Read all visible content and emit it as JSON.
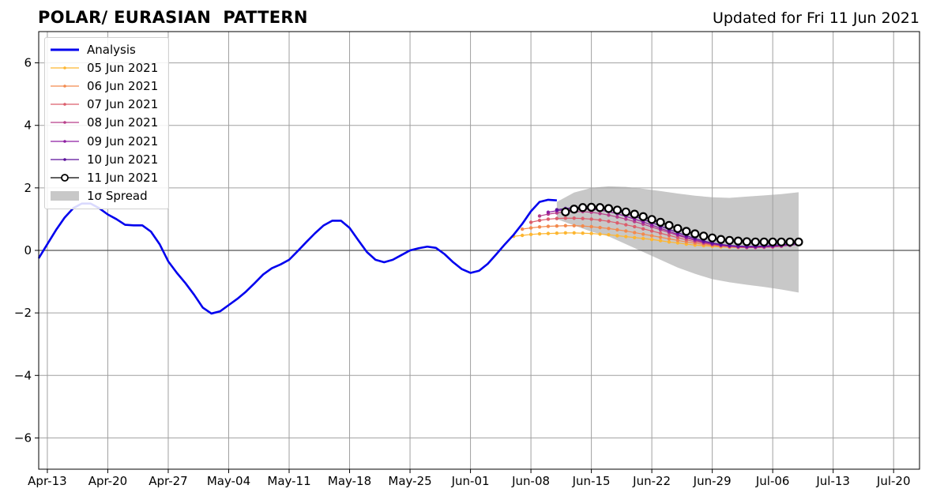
{
  "title": "POLAR/ EURASIAN  PATTERN",
  "updated_label": "Updated for Fri 11 Jun 2021",
  "chart_data": {
    "type": "line",
    "title": "POLAR/ EURASIAN  PATTERN",
    "xlabel": "",
    "ylabel": "",
    "x_ticks": [
      "Apr-13",
      "Apr-20",
      "Apr-27",
      "May-04",
      "May-11",
      "May-18",
      "May-25",
      "Jun-01",
      "Jun-08",
      "Jun-15",
      "Jun-22",
      "Jun-29",
      "Jul-06",
      "Jul-13",
      "Jul-20"
    ],
    "y_ticks": [
      "6",
      "4",
      "2",
      "0",
      "−2",
      "−4",
      "−6"
    ],
    "y_tick_values": [
      6,
      4,
      2,
      0,
      -2,
      -4,
      -6
    ],
    "ylim": [
      -7,
      7
    ],
    "xlim": [
      "2021-04-12",
      "2021-07-23"
    ],
    "grid": true,
    "legend_position": "top-left",
    "series": [
      {
        "name": "Analysis",
        "color": "#0000ee",
        "x": [
          "2021-04-12",
          "2021-04-13",
          "2021-04-14",
          "2021-04-15",
          "2021-04-16",
          "2021-04-17",
          "2021-04-18",
          "2021-04-19",
          "2021-04-20",
          "2021-04-21",
          "2021-04-22",
          "2021-04-23",
          "2021-04-24",
          "2021-04-25",
          "2021-04-26",
          "2021-04-27",
          "2021-04-28",
          "2021-04-29",
          "2021-04-30",
          "2021-05-01",
          "2021-05-02",
          "2021-05-03",
          "2021-05-04",
          "2021-05-05",
          "2021-05-06",
          "2021-05-07",
          "2021-05-08",
          "2021-05-09",
          "2021-05-10",
          "2021-05-11",
          "2021-05-12",
          "2021-05-13",
          "2021-05-14",
          "2021-05-15",
          "2021-05-16",
          "2021-05-17",
          "2021-05-18",
          "2021-05-19",
          "2021-05-20",
          "2021-05-21",
          "2021-05-22",
          "2021-05-23",
          "2021-05-24",
          "2021-05-25",
          "2021-05-26",
          "2021-05-27",
          "2021-05-28",
          "2021-05-29",
          "2021-05-30",
          "2021-05-31",
          "2021-06-01",
          "2021-06-02",
          "2021-06-03",
          "2021-06-04",
          "2021-06-05",
          "2021-06-06",
          "2021-06-07",
          "2021-06-08",
          "2021-06-09",
          "2021-06-10",
          "2021-06-11"
        ],
        "y": [
          -0.25,
          0.2,
          0.65,
          1.05,
          1.35,
          1.5,
          1.5,
          1.35,
          1.15,
          1.0,
          0.82,
          0.8,
          0.8,
          0.6,
          0.2,
          -0.35,
          -0.72,
          -1.05,
          -1.42,
          -1.83,
          -2.02,
          -1.95,
          -1.75,
          -1.55,
          -1.32,
          -1.05,
          -0.77,
          -0.57,
          -0.45,
          -0.3,
          -0.02,
          0.27,
          0.55,
          0.8,
          0.95,
          0.95,
          0.72,
          0.33,
          -0.05,
          -0.3,
          -0.38,
          -0.3,
          -0.15,
          0.0,
          0.07,
          0.12,
          0.08,
          -0.12,
          -0.38,
          -0.6,
          -0.72,
          -0.65,
          -0.43,
          -0.12,
          0.2,
          0.5,
          0.85,
          1.25,
          1.55,
          1.62,
          1.6
        ]
      },
      {
        "name": "05 Jun 2021",
        "color": "#fdb631",
        "x": [
          "2021-06-06",
          "2021-06-07",
          "2021-06-08",
          "2021-06-09",
          "2021-06-10",
          "2021-06-11",
          "2021-06-12",
          "2021-06-13",
          "2021-06-14",
          "2021-06-15",
          "2021-06-16",
          "2021-06-17",
          "2021-06-18",
          "2021-06-19",
          "2021-06-20",
          "2021-06-21",
          "2021-06-22",
          "2021-06-23",
          "2021-06-24",
          "2021-06-25",
          "2021-06-26",
          "2021-06-27",
          "2021-06-28",
          "2021-06-29",
          "2021-06-30",
          "2021-07-01",
          "2021-07-02",
          "2021-07-03",
          "2021-07-04",
          "2021-07-05"
        ],
        "y": [
          0.45,
          0.48,
          0.51,
          0.53,
          0.54,
          0.55,
          0.56,
          0.56,
          0.55,
          0.54,
          0.52,
          0.5,
          0.47,
          0.44,
          0.41,
          0.38,
          0.35,
          0.31,
          0.27,
          0.24,
          0.2,
          0.17,
          0.15,
          0.13,
          0.11,
          0.1,
          0.09,
          0.09,
          0.1,
          0.11
        ]
      },
      {
        "name": "06 Jun 2021",
        "color": "#f38a4e",
        "x": [
          "2021-06-07",
          "2021-06-08",
          "2021-06-09",
          "2021-06-10",
          "2021-06-11",
          "2021-06-12",
          "2021-06-13",
          "2021-06-14",
          "2021-06-15",
          "2021-06-16",
          "2021-06-17",
          "2021-06-18",
          "2021-06-19",
          "2021-06-20",
          "2021-06-21",
          "2021-06-22",
          "2021-06-23",
          "2021-06-24",
          "2021-06-25",
          "2021-06-26",
          "2021-06-27",
          "2021-06-28",
          "2021-06-29",
          "2021-06-30",
          "2021-07-01",
          "2021-07-02",
          "2021-07-03",
          "2021-07-04",
          "2021-07-05",
          "2021-07-06"
        ],
        "y": [
          0.68,
          0.72,
          0.75,
          0.77,
          0.78,
          0.79,
          0.79,
          0.78,
          0.76,
          0.73,
          0.7,
          0.66,
          0.62,
          0.57,
          0.52,
          0.47,
          0.42,
          0.37,
          0.32,
          0.27,
          0.23,
          0.19,
          0.16,
          0.13,
          0.11,
          0.1,
          0.09,
          0.09,
          0.1,
          0.11
        ]
      },
      {
        "name": "07 Jun 2021",
        "color": "#dc5e6c",
        "x": [
          "2021-06-08",
          "2021-06-09",
          "2021-06-10",
          "2021-06-11",
          "2021-06-12",
          "2021-06-13",
          "2021-06-14",
          "2021-06-15",
          "2021-06-16",
          "2021-06-17",
          "2021-06-18",
          "2021-06-19",
          "2021-06-20",
          "2021-06-21",
          "2021-06-22",
          "2021-06-23",
          "2021-06-24",
          "2021-06-25",
          "2021-06-26",
          "2021-06-27",
          "2021-06-28",
          "2021-06-29",
          "2021-06-30",
          "2021-07-01",
          "2021-07-02",
          "2021-07-03",
          "2021-07-04",
          "2021-07-05",
          "2021-07-06",
          "2021-07-07"
        ],
        "y": [
          0.9,
          0.96,
          1.0,
          1.02,
          1.03,
          1.03,
          1.02,
          1.0,
          0.97,
          0.93,
          0.88,
          0.82,
          0.76,
          0.69,
          0.62,
          0.55,
          0.48,
          0.41,
          0.34,
          0.28,
          0.23,
          0.18,
          0.15,
          0.12,
          0.1,
          0.09,
          0.09,
          0.1,
          0.11,
          0.13
        ]
      },
      {
        "name": "08 Jun 2021",
        "color": "#b83f8a",
        "x": [
          "2021-06-09",
          "2021-06-10",
          "2021-06-11",
          "2021-06-12",
          "2021-06-13",
          "2021-06-14",
          "2021-06-15",
          "2021-06-16",
          "2021-06-17",
          "2021-06-18",
          "2021-06-19",
          "2021-06-20",
          "2021-06-21",
          "2021-06-22",
          "2021-06-23",
          "2021-06-24",
          "2021-06-25",
          "2021-06-26",
          "2021-06-27",
          "2021-06-28",
          "2021-06-29",
          "2021-06-30",
          "2021-07-01",
          "2021-07-02",
          "2021-07-03",
          "2021-07-04",
          "2021-07-05",
          "2021-07-06",
          "2021-07-07",
          "2021-07-08"
        ],
        "y": [
          1.1,
          1.16,
          1.2,
          1.23,
          1.24,
          1.24,
          1.22,
          1.18,
          1.13,
          1.07,
          1.0,
          0.92,
          0.84,
          0.75,
          0.66,
          0.57,
          0.48,
          0.4,
          0.32,
          0.25,
          0.2,
          0.16,
          0.13,
          0.11,
          0.1,
          0.1,
          0.11,
          0.12,
          0.14,
          0.16
        ]
      },
      {
        "name": "09 Jun 2021",
        "color": "#8e1ea2",
        "x": [
          "2021-06-10",
          "2021-06-11",
          "2021-06-12",
          "2021-06-13",
          "2021-06-14",
          "2021-06-15",
          "2021-06-16",
          "2021-06-17",
          "2021-06-18",
          "2021-06-19",
          "2021-06-20",
          "2021-06-21",
          "2021-06-22",
          "2021-06-23",
          "2021-06-24",
          "2021-06-25",
          "2021-06-26",
          "2021-06-27",
          "2021-06-28",
          "2021-06-29",
          "2021-06-30",
          "2021-07-01",
          "2021-07-02",
          "2021-07-03",
          "2021-07-04",
          "2021-07-05",
          "2021-07-06",
          "2021-07-07",
          "2021-07-08",
          "2021-07-09"
        ],
        "y": [
          1.22,
          1.27,
          1.3,
          1.32,
          1.33,
          1.32,
          1.29,
          1.24,
          1.17,
          1.09,
          1.0,
          0.91,
          0.81,
          0.71,
          0.61,
          0.51,
          0.42,
          0.34,
          0.27,
          0.21,
          0.17,
          0.14,
          0.12,
          0.11,
          0.11,
          0.12,
          0.13,
          0.15,
          0.17,
          0.19
        ]
      },
      {
        "name": "10 Jun 2021",
        "color": "#5a0f9a",
        "x": [
          "2021-06-11",
          "2021-06-12",
          "2021-06-13",
          "2021-06-14",
          "2021-06-15",
          "2021-06-16",
          "2021-06-17",
          "2021-06-18",
          "2021-06-19",
          "2021-06-20",
          "2021-06-21",
          "2021-06-22",
          "2021-06-23",
          "2021-06-24",
          "2021-06-25",
          "2021-06-26",
          "2021-06-27",
          "2021-06-28",
          "2021-06-29",
          "2021-06-30",
          "2021-07-01",
          "2021-07-02",
          "2021-07-03",
          "2021-07-04",
          "2021-07-05",
          "2021-07-06",
          "2021-07-07",
          "2021-07-08",
          "2021-07-09"
        ],
        "y": [
          1.3,
          1.34,
          1.37,
          1.38,
          1.38,
          1.36,
          1.32,
          1.26,
          1.18,
          1.09,
          0.99,
          0.89,
          0.78,
          0.67,
          0.57,
          0.47,
          0.38,
          0.3,
          0.24,
          0.19,
          0.16,
          0.14,
          0.13,
          0.13,
          0.14,
          0.16,
          0.18,
          0.2,
          0.22
        ]
      },
      {
        "name": "11 Jun 2021",
        "color": "#000000",
        "x": [
          "2021-06-12",
          "2021-06-13",
          "2021-06-14",
          "2021-06-15",
          "2021-06-16",
          "2021-06-17",
          "2021-06-18",
          "2021-06-19",
          "2021-06-20",
          "2021-06-21",
          "2021-06-22",
          "2021-06-23",
          "2021-06-24",
          "2021-06-25",
          "2021-06-26",
          "2021-06-27",
          "2021-06-28",
          "2021-06-29",
          "2021-06-30",
          "2021-07-01",
          "2021-07-02",
          "2021-07-03",
          "2021-07-04",
          "2021-07-05",
          "2021-07-06",
          "2021-07-07",
          "2021-07-08",
          "2021-07-09"
        ],
        "y": [
          1.23,
          1.32,
          1.37,
          1.38,
          1.37,
          1.34,
          1.29,
          1.23,
          1.16,
          1.08,
          0.99,
          0.9,
          0.8,
          0.7,
          0.61,
          0.53,
          0.46,
          0.4,
          0.35,
          0.32,
          0.3,
          0.28,
          0.27,
          0.27,
          0.27,
          0.27,
          0.27,
          0.27
        ]
      }
    ],
    "spread": {
      "name": "1σ Spread",
      "color": "#c8c8c8",
      "x": [
        "2021-06-11",
        "2021-06-13",
        "2021-06-15",
        "2021-06-17",
        "2021-06-19",
        "2021-06-21",
        "2021-06-23",
        "2021-06-25",
        "2021-06-27",
        "2021-06-29",
        "2021-07-01",
        "2021-07-03",
        "2021-07-05",
        "2021-07-07",
        "2021-07-09"
      ],
      "upper": [
        1.55,
        1.85,
        2.0,
        2.05,
        2.03,
        1.97,
        1.9,
        1.82,
        1.75,
        1.7,
        1.68,
        1.72,
        1.76,
        1.8,
        1.86
      ],
      "lower": [
        1.0,
        0.8,
        0.6,
        0.45,
        0.2,
        -0.05,
        -0.3,
        -0.55,
        -0.75,
        -0.92,
        -1.02,
        -1.1,
        -1.17,
        -1.25,
        -1.35
      ]
    }
  }
}
